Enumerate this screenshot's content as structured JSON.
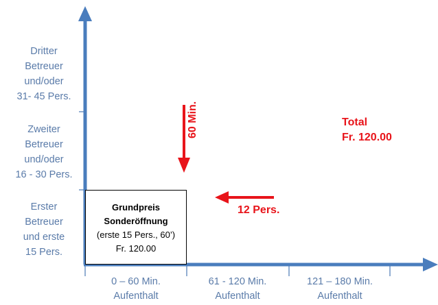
{
  "y_axis_labels": [
    "Dritter\nBetreuer\nund/oder\n31- 45 Pers.",
    "Zweiter\nBetreuer\nund/oder\n16 - 30 Pers.",
    "Erster\nBetreuer\nund  erste\n15 Pers."
  ],
  "x_axis_labels": [
    "0 – 60 Min.\nAufenthalt",
    "61 - 120 Min.\nAufenthalt",
    "121 – 180  Min.\nAufenthalt"
  ],
  "base_box": {
    "line1": "Grundpreis",
    "line2": "Sonderöffnung",
    "line3": "(erste 15 Pers., 60’)",
    "line4": "Fr. 120.00"
  },
  "down_arrow_label": "60  Min.",
  "left_arrow_label": "12 Pers.",
  "total": {
    "line1": "Total",
    "line2": "Fr. 120.00"
  },
  "colors": {
    "axis": "#4a7dbd",
    "label_text": "#5a7ba9",
    "accent_red": "#e8141a"
  },
  "icons": [
    "arrow-up-icon",
    "arrow-right-icon",
    "arrow-down-icon",
    "arrow-left-icon"
  ]
}
